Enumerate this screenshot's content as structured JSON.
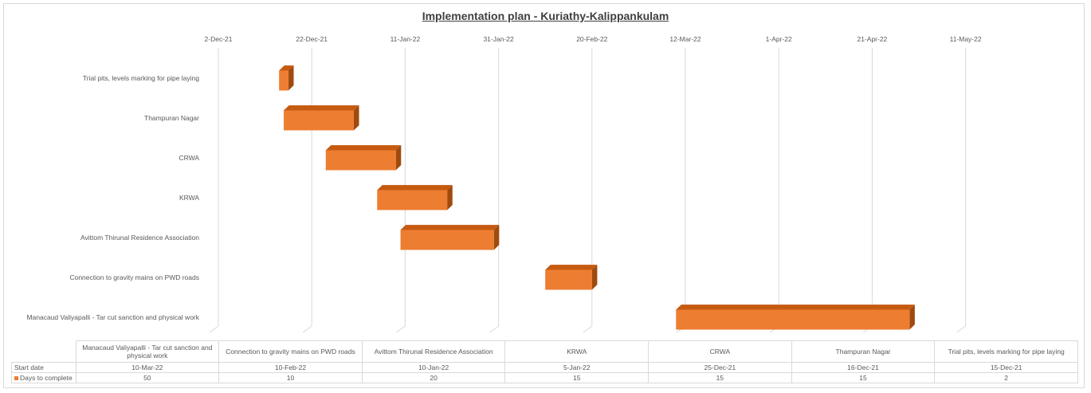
{
  "chart_data": {
    "type": "bar",
    "orientation": "horizontal",
    "style": "3d-stacked-gantt",
    "title": "Implementation plan - Kuriathy-Kalippankulam",
    "x_ticks": [
      "2-Dec-21",
      "22-Dec-21",
      "11-Jan-22",
      "31-Jan-22",
      "20-Feb-22",
      "12-Mar-22",
      "1-Apr-22",
      "21-Apr-22",
      "11-May-22"
    ],
    "xlim": [
      "2-Dec-21",
      "11-May-22"
    ],
    "x_axis_position": "top",
    "grid": true,
    "legend": "bottom-data-table",
    "categories": [
      "Manacaud Valiyapalli - Tar cut sanction and physical work",
      "Connection to gravity mains on PWD roads",
      "Avittom Thirunal Residence Association",
      "KRWA",
      "CRWA",
      "Thampuran Nagar",
      "Trial pits, levels marking for pipe laying"
    ],
    "y_labels": [
      "Manacaud Valiyapalli - Tar cut sanction and physical work",
      "Connection to gravity mains on PWD roads",
      "Avittom Thirunal Residence Association ",
      "KRWA",
      "CRWA",
      "Thampuran Nagar",
      "Trial pits, levels marking for pipe laying"
    ],
    "series": [
      {
        "name": "Start date",
        "visible": false,
        "values": [
          "10-Mar-22",
          "10-Feb-22",
          "10-Jan-22",
          "5-Jan-22",
          "25-Dec-21",
          "16-Dec-21",
          "15-Dec-21"
        ]
      },
      {
        "name": "Days to complete",
        "color": "#ed7d31",
        "values": [
          50,
          10,
          20,
          15,
          15,
          15,
          2
        ]
      }
    ]
  }
}
